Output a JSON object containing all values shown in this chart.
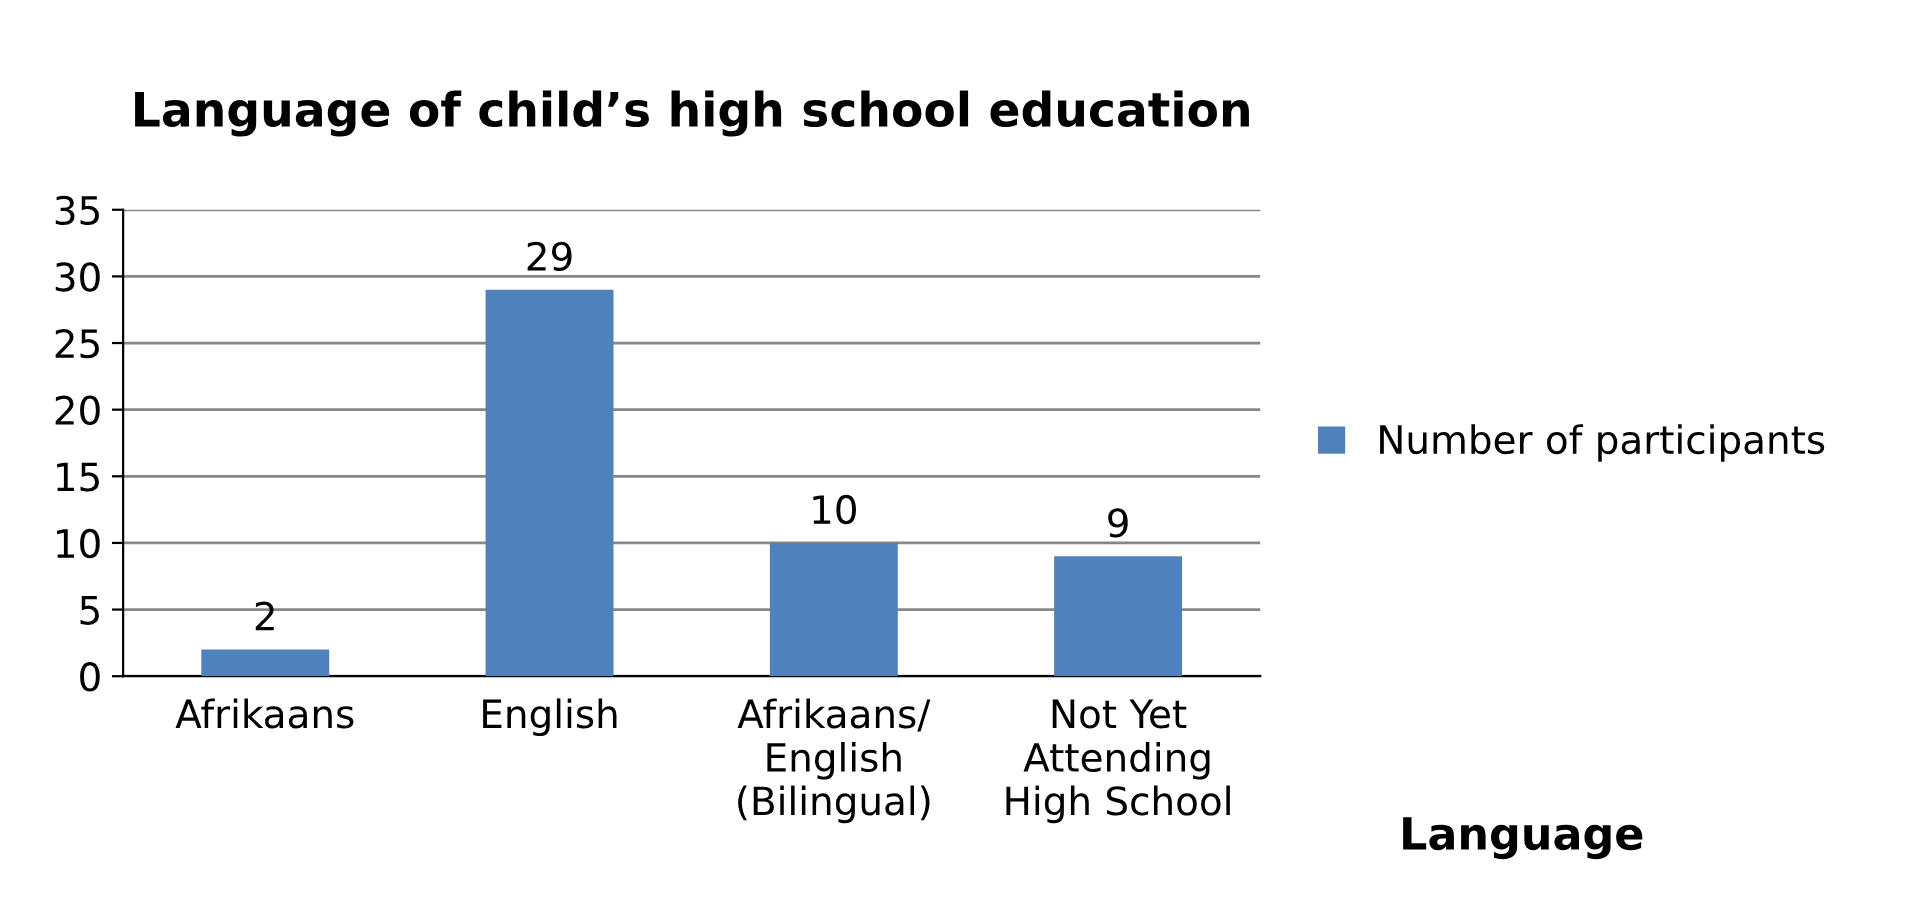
{
  "chart_data": {
    "type": "bar",
    "title": "Language of child’s high school education",
    "xlabel": "Language",
    "categories": [
      "Afrikaans",
      "English",
      "Afrikaans/\nEnglish\n(Bilingual)",
      "Not Yet\nAttending\nHigh School"
    ],
    "series": [
      {
        "name": "Number of participants",
        "color": "#4f81bd",
        "values": [
          2,
          29,
          10,
          9
        ]
      }
    ],
    "ylim": [
      0,
      35
    ],
    "yticks": [
      0,
      5,
      10,
      15,
      20,
      25,
      30,
      35
    ],
    "grid": "y",
    "legend": "right",
    "data_labels": true
  }
}
